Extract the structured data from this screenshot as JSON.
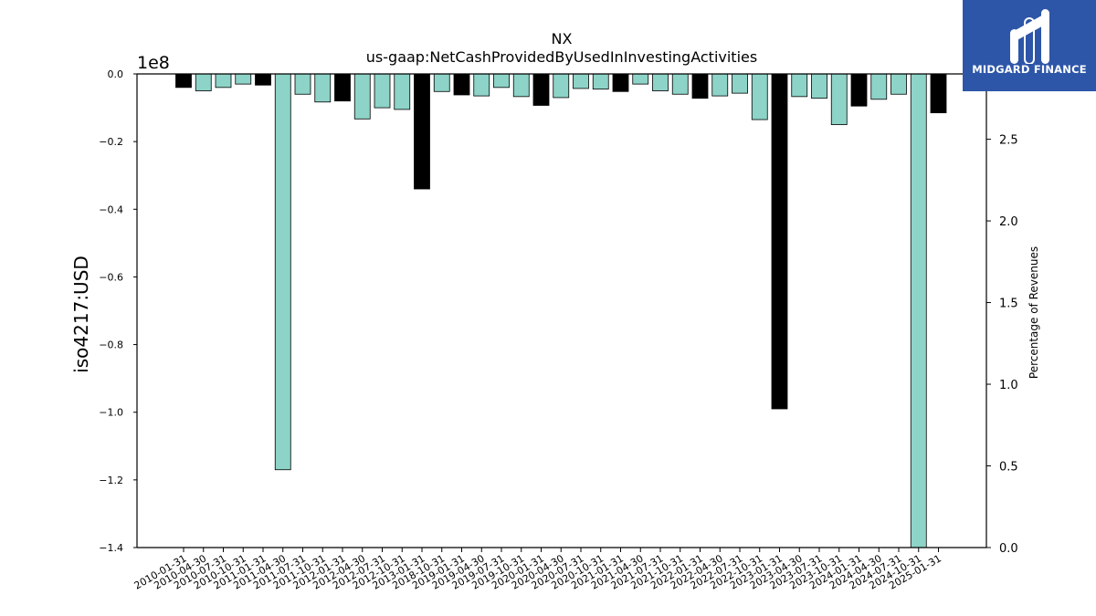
{
  "chart_data": {
    "type": "bar",
    "title": "NX",
    "subtitle": "us-gaap:NetCashProvidedByUsedInInvestingActivities",
    "ylabel": "iso4217:USD",
    "y_offset_label": "1e8",
    "y2label": "Percentage of Revenues",
    "ylim": [
      -1.4,
      0.0
    ],
    "y2lim": [
      0.0,
      2.9
    ],
    "yticks": [
      "0.0",
      "−0.2",
      "−0.4",
      "−0.6",
      "−0.8",
      "−1.0",
      "−1.2",
      "−1.4"
    ],
    "y2ticks": [
      "0.0",
      "0.5",
      "1.0",
      "1.5",
      "2.0",
      "2.5"
    ],
    "grid": false,
    "categories": [
      "2010-01-31",
      "2010-04-30",
      "2010-07-31",
      "2010-10-31",
      "2011-01-31",
      "2011-04-30",
      "2011-07-31",
      "2011-10-31",
      "2012-01-31",
      "2012-04-30",
      "2012-07-31",
      "2012-10-31",
      "2013-01-31",
      "2018-10-31",
      "2019-01-31",
      "2019-04-30",
      "2019-07-31",
      "2019-10-31",
      "2020-01-31",
      "2020-04-30",
      "2020-07-31",
      "2020-10-31",
      "2021-01-31",
      "2021-04-30",
      "2021-07-31",
      "2021-10-31",
      "2022-01-31",
      "2022-04-30",
      "2022-07-31",
      "2022-10-31",
      "2023-01-31",
      "2023-04-30",
      "2023-07-31",
      "2023-10-31",
      "2024-01-31",
      "2024-04-30",
      "2024-07-31",
      "2024-10-31",
      "2025-01-31"
    ],
    "values": [
      -0.04,
      -0.05,
      -0.04,
      -0.03,
      -0.033,
      -1.17,
      -0.06,
      -0.083,
      -0.08,
      -0.133,
      -0.1,
      -0.105,
      -0.34,
      -0.052,
      -0.062,
      -0.065,
      -0.04,
      -0.067,
      -0.093,
      -0.07,
      -0.043,
      -0.045,
      -0.052,
      -0.03,
      -0.05,
      -0.06,
      -0.072,
      -0.065,
      -0.057,
      -0.135,
      -0.99,
      -0.067,
      -0.072,
      -0.15,
      -0.095,
      -0.075,
      -0.06,
      -1.4,
      -0.115
    ],
    "colors": [
      "#000000",
      "#8dd3c7",
      "#8dd3c7",
      "#8dd3c7",
      "#000000",
      "#8dd3c7",
      "#8dd3c7",
      "#8dd3c7",
      "#000000",
      "#8dd3c7",
      "#8dd3c7",
      "#8dd3c7",
      "#000000",
      "#8dd3c7",
      "#000000",
      "#8dd3c7",
      "#8dd3c7",
      "#8dd3c7",
      "#000000",
      "#8dd3c7",
      "#8dd3c7",
      "#8dd3c7",
      "#000000",
      "#8dd3c7",
      "#8dd3c7",
      "#8dd3c7",
      "#000000",
      "#8dd3c7",
      "#8dd3c7",
      "#8dd3c7",
      "#000000",
      "#8dd3c7",
      "#8dd3c7",
      "#8dd3c7",
      "#000000",
      "#8dd3c7",
      "#8dd3c7",
      "#8dd3c7",
      "#000000"
    ]
  },
  "logo": {
    "text": "MIDGARD FINANCE",
    "background": "#2d56a8"
  }
}
